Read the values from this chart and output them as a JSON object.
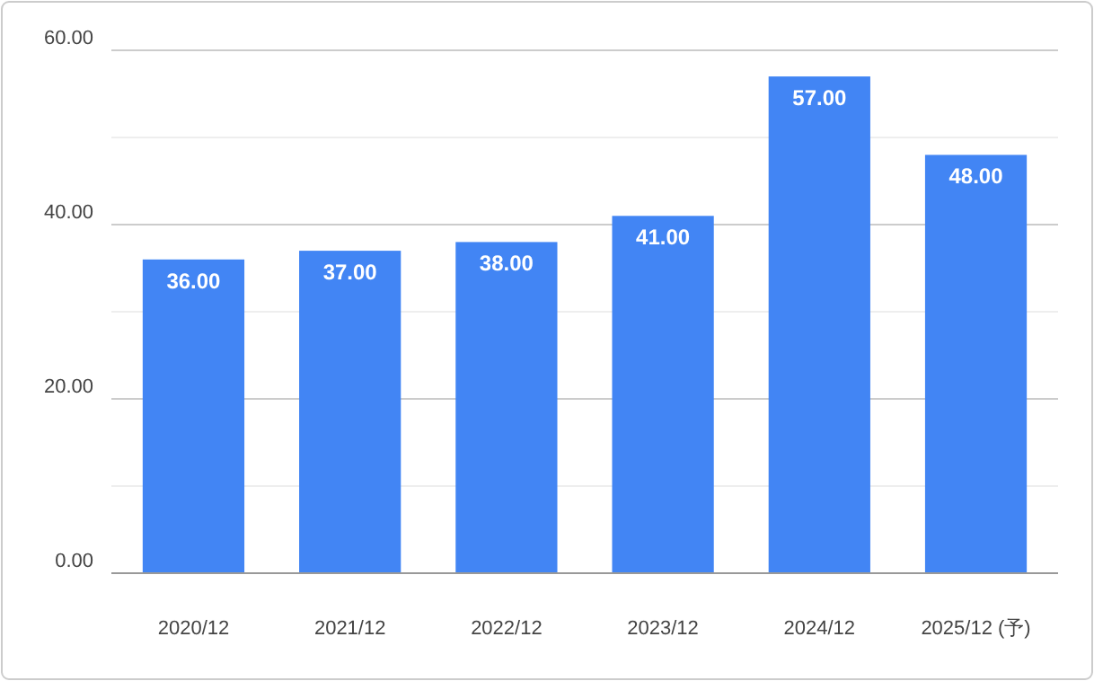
{
  "chart_data": {
    "type": "bar",
    "categories": [
      "2020/12",
      "2021/12",
      "2022/12",
      "2023/12",
      "2024/12",
      "2025/12 (予)"
    ],
    "values": [
      36,
      37,
      38,
      41,
      57,
      48
    ],
    "value_labels": [
      "36.00",
      "37.00",
      "38.00",
      "41.00",
      "57.00",
      "48.00"
    ],
    "color": "#4285f4",
    "ylim": [
      0,
      60
    ],
    "yticks": [
      {
        "value": 0,
        "label": "0.00"
      },
      {
        "value": 10,
        "label": null
      },
      {
        "value": 20,
        "label": "20.00"
      },
      {
        "value": 30,
        "label": null
      },
      {
        "value": 40,
        "label": "40.00"
      },
      {
        "value": 50,
        "label": null
      },
      {
        "value": 60,
        "label": "60.00"
      }
    ],
    "grid": "y"
  }
}
